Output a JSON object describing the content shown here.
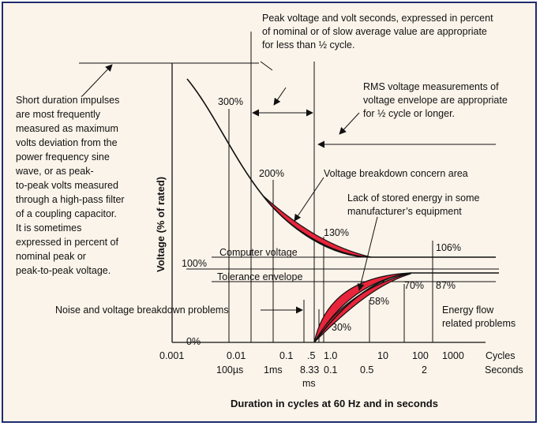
{
  "colors": {
    "background": "#fbf4ea",
    "border": "#1f2c6e",
    "highlight": "#e8253b",
    "ink": "#111111"
  },
  "annotations": {
    "peak_note": [
      "Peak voltage and volt seconds, expressed in percent",
      "of nominal or of slow average value are appropriate",
      "for less than ½ cycle."
    ],
    "rms_note": [
      "RMS voltage measurements of",
      "voltage envelope are appropriate",
      "for ½ cycle or longer."
    ],
    "impulse_note": [
      "Short duration impulses",
      "are most frequently",
      "measured as maximum",
      "volts deviation from the",
      "power frequency sine",
      "wave, or as peak-",
      "to-peak volts measured",
      "through a high-pass filter",
      "of a coupling capacitor.",
      "It is sometimes",
      "expressed in percent of",
      "nominal peak or",
      "peak-to-peak voltage."
    ],
    "breakdown_area": "Voltage breakdown concern area",
    "stored_energy": [
      "Lack of stored energy in some",
      "manufacturer’s equipment"
    ],
    "computer_voltage": "Computer voltage",
    "tolerance_envelope": "Tolerance envelope",
    "noise_problems": "Noise and voltage breakdown problems",
    "energy_flow": [
      "Energy flow",
      "related problems"
    ]
  },
  "axis": {
    "y_label": "Voltage (% of rated)",
    "x_label": "Duration in cycles at 60 Hz and in seconds",
    "y_ticks": [
      "100%",
      "0%"
    ],
    "cycle_ticks": [
      "0.001",
      "0.01",
      "0.1",
      ".5",
      "1.0",
      "10",
      "100",
      "1000"
    ],
    "cycle_unit": "Cycles",
    "second_ticks": [
      "100µs",
      "1ms",
      "8.33",
      "ms",
      "0.1",
      "0.5",
      "2"
    ],
    "second_unit": "Seconds"
  },
  "value_labels": {
    "upper": [
      "300%",
      "200%",
      "130%",
      "106%"
    ],
    "lower": [
      "30%",
      "58%",
      "70%",
      "87%"
    ]
  }
}
